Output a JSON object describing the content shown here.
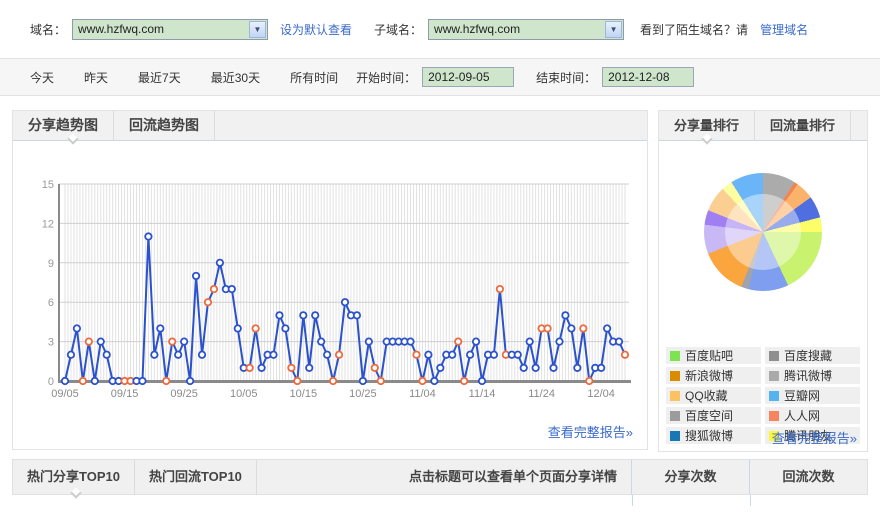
{
  "header": {
    "domain_label": "域名：",
    "domain_value": "www.hzfwq.com",
    "set_default_link": "设为默认查看",
    "subdomain_label": "子域名：",
    "subdomain_value": "www.hzfwq.com",
    "unknown_domain_text": "看到了陌生域名？请",
    "manage_domain_link": "管理域名"
  },
  "filters": {
    "today": "今天",
    "yesterday": "昨天",
    "last7": "最近7天",
    "last30": "最近30天",
    "all_time": "所有时间",
    "start_label": "开始时间：",
    "start_value": "2012-09-05",
    "end_label": "结束时间：",
    "end_value": "2012-12-08"
  },
  "trend_panel": {
    "tabs": [
      {
        "label": "分享趋势图",
        "active": true
      },
      {
        "label": "回流趋势图",
        "active": false
      }
    ],
    "full_report_link": "查看完整报告»"
  },
  "ranking_panel": {
    "tabs": [
      {
        "label": "分享量排行",
        "active": true
      },
      {
        "label": "回流量排行",
        "active": false
      }
    ],
    "legend": [
      {
        "label": "百度贴吧",
        "color": "#7de350"
      },
      {
        "label": "百度搜藏",
        "color": "#8f8f8f"
      },
      {
        "label": "新浪微博",
        "color": "#d88c01"
      },
      {
        "label": "腾讯微博",
        "color": "#aaaaaa"
      },
      {
        "label": "QQ收藏",
        "color": "#fbc25f"
      },
      {
        "label": "豆瓣网",
        "color": "#55b3f0"
      },
      {
        "label": "百度空间",
        "color": "#9c9c9c"
      },
      {
        "label": "人人网",
        "color": "#f8845f"
      },
      {
        "label": "搜狐微博",
        "color": "#1778b5"
      },
      {
        "label": "腾讯朋友",
        "color": "#fbf73e"
      }
    ],
    "full_report_link": "查看完整报告»"
  },
  "bottom_panel": {
    "tabs": [
      {
        "label": "热门分享TOP10",
        "active": true
      },
      {
        "label": "热门回流TOP10",
        "active": false
      }
    ],
    "hint": "点击标题可以查看单个页面分享详情",
    "col_share": "分享次数",
    "col_backflow": "回流次数"
  },
  "chart_data": [
    {
      "type": "line",
      "title": "分享趋势图",
      "date_range": [
        "2012-09-05",
        "2012-12-08"
      ],
      "x_tick_labels": [
        "09/05",
        "09/15",
        "09/25",
        "10/05",
        "10/15",
        "10/25",
        "11/04",
        "11/14",
        "11/24",
        "12/04"
      ],
      "x_tick_indices": [
        0,
        10,
        20,
        30,
        40,
        50,
        60,
        70,
        80,
        90
      ],
      "y_ticks": [
        0,
        3,
        6,
        9,
        12,
        15
      ],
      "ylim": [
        0,
        15
      ],
      "grid": true,
      "line_color": "#2b52cc",
      "weekday_marker_color": "#2b52cc",
      "weekend_marker_color": "#ee6a3d",
      "series": [
        {
          "name": "分享趋势",
          "values": [
            0,
            2,
            4,
            0,
            3,
            0,
            3,
            2,
            0,
            0,
            0,
            0,
            0,
            0,
            11,
            2,
            4,
            0,
            3,
            2,
            3,
            0,
            8,
            2,
            6,
            7,
            9,
            7,
            7,
            4,
            1,
            1,
            4,
            1,
            2,
            2,
            5,
            4,
            1,
            0,
            5,
            1,
            5,
            3,
            2,
            0,
            2,
            6,
            5,
            5,
            0,
            3,
            1,
            0,
            3,
            3,
            3,
            3,
            3,
            2,
            0,
            2,
            0,
            1,
            2,
            2,
            3,
            0,
            2,
            3,
            0,
            2,
            2,
            7,
            2,
            2,
            2,
            1,
            3,
            1,
            4,
            4,
            1,
            3,
            5,
            4,
            1,
            4,
            0,
            1,
            1,
            4,
            3,
            3,
            2
          ]
        }
      ],
      "weekend_indices": [
        3,
        4,
        10,
        11,
        17,
        18,
        24,
        25,
        31,
        32,
        38,
        39,
        45,
        46,
        52,
        53,
        59,
        60,
        66,
        67,
        73,
        74,
        80,
        81,
        87,
        88,
        94
      ]
    },
    {
      "type": "pie",
      "title": "分享量排行",
      "slices": [
        {
          "color": "#ababab",
          "value": 9
        },
        {
          "color": "#f5824f",
          "value": 1
        },
        {
          "color": "#fbb26a",
          "value": 5
        },
        {
          "color": "#4f6fe0",
          "value": 6
        },
        {
          "color": "#fdfd67",
          "value": 4
        },
        {
          "color": "#c9f26e",
          "value": 18
        },
        {
          "color": "#7f9ef0",
          "value": 11
        },
        {
          "color": "#9fa3ac",
          "value": 2
        },
        {
          "color": "#faa53e",
          "value": 13
        },
        {
          "color": "#c8b8f5",
          "value": 8
        },
        {
          "color": "#9f7ff2",
          "value": 4
        },
        {
          "color": "#fbcf92",
          "value": 7
        },
        {
          "color": "#fdfda1",
          "value": 3
        },
        {
          "color": "#69b5f7",
          "value": 9
        }
      ],
      "legend_position": "bottom"
    }
  ]
}
